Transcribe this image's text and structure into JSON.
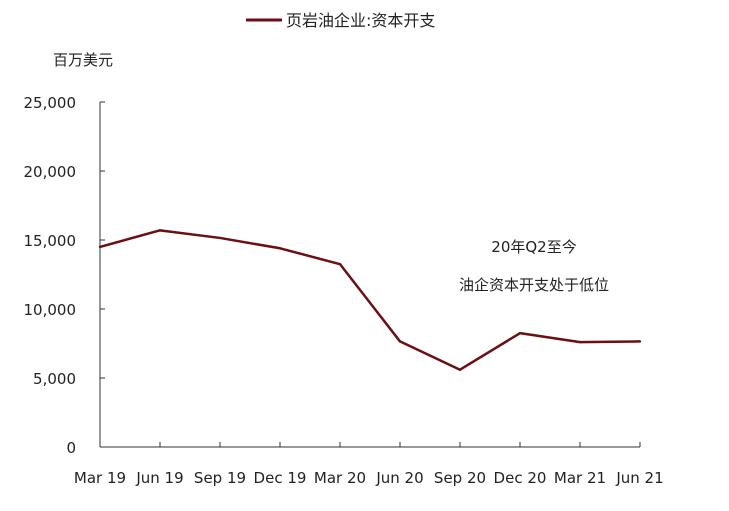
{
  "chart_data": {
    "type": "line",
    "legend": {
      "position": "top-center"
    },
    "unit_label": "百万美元",
    "series": [
      {
        "name": "页岩油企业:资本开支",
        "color": "#6b0f12",
        "values": [
          14500,
          15700,
          15150,
          14400,
          13250,
          7650,
          5600,
          8250,
          7600,
          7650
        ]
      }
    ],
    "categories": [
      "Mar 19",
      "Jun 19",
      "Sep 19",
      "Dec 19",
      "Mar 20",
      "Jun 20",
      "Sep 20",
      "Dec 20",
      "Mar 21",
      "Jun 21"
    ],
    "y_ticks": [
      "25,000",
      "20,000",
      "15,000",
      "10,000",
      "5,000",
      "0"
    ],
    "y_tick_values": [
      25000,
      20000,
      15000,
      10000,
      5000,
      0
    ],
    "ylim": [
      0,
      25000
    ],
    "grid": false,
    "annotation": {
      "lines": [
        "20年Q2至今",
        "油企资本开支处于低位"
      ]
    }
  }
}
